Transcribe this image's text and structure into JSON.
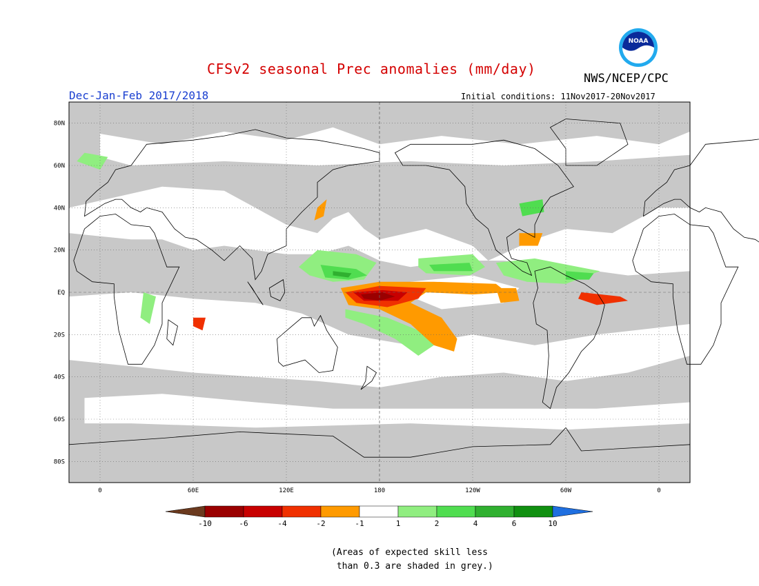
{
  "header": {
    "title": "CFSv2 seasonal Prec anomalies (mm/day)",
    "agency": "NWS/NCEP/CPC",
    "season": "Dec-Jan-Feb 2017/2018",
    "initial_conditions": "Initial conditions: 11Nov2017-20Nov2017",
    "logo_text": "NOAA"
  },
  "map": {
    "lat_labels": [
      "80N",
      "60N",
      "40N",
      "20N",
      "EQ",
      "20S",
      "40S",
      "60S",
      "80S"
    ],
    "lon_labels": [
      "0",
      "60E",
      "120E",
      "180",
      "120W",
      "60W",
      "0"
    ],
    "colors": {
      "skill_grey": "#c8c8c8",
      "no_skill_white": "#ffffff",
      "coast": "#000000"
    }
  },
  "colorbar": {
    "labels": [
      "-10",
      "-6",
      "-4",
      "-2",
      "-1",
      "1",
      "2",
      "4",
      "6",
      "10"
    ],
    "colors": [
      "#6b3a1e",
      "#9a0000",
      "#c80000",
      "#f03000",
      "#ff9a00",
      "#ffffff",
      "#90ee80",
      "#50dd50",
      "#30b030",
      "#109010",
      "#1f6fe0"
    ]
  },
  "footnote": {
    "line1": "(Areas of expected skill less",
    "line2": " than 0.3 are shaded in grey.)"
  }
}
